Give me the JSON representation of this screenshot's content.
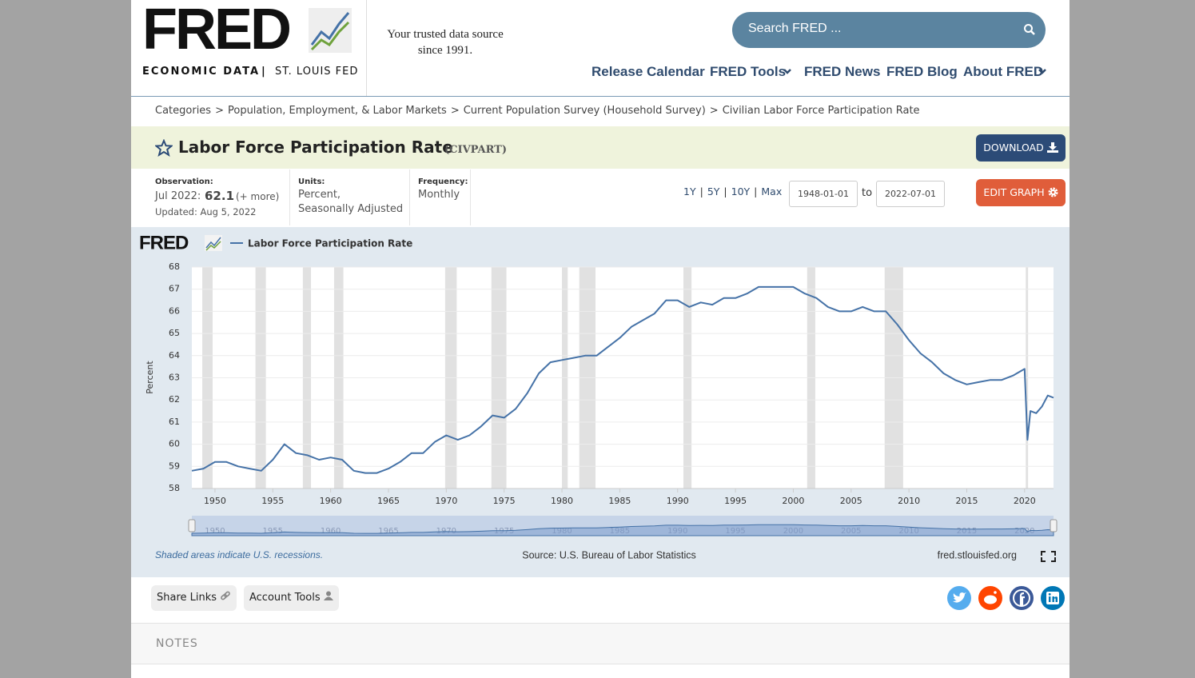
{
  "header": {
    "logo": "FRED",
    "logo_sub": "ECONOMIC DATA",
    "logo_divider": "|",
    "logo_org": "ST. LOUIS FED",
    "tagline_1": "Your trusted data source",
    "tagline_2": "since 1991.",
    "search_placeholder": "Search FRED ...",
    "nav": [
      "Release Calendar",
      "FRED Tools",
      "FRED News",
      "FRED Blog",
      "About FRED"
    ]
  },
  "breadcrumb": {
    "items": [
      "Categories",
      "Population, Employment, & Labor Markets",
      "Current Population Survey (Household Survey)",
      "Civilian Labor Force Participation Rate"
    ],
    "separator": ">"
  },
  "series_header": {
    "title": "Labor Force Participation Rate",
    "id": "(CIVPART)",
    "download": "DOWNLOAD"
  },
  "meta": {
    "observation_label": "Observation:",
    "observation_date": "Jul 2022:",
    "observation_value": "62.1",
    "observation_more": "(+ more)",
    "updated": "Updated: Aug 5, 2022",
    "units_label": "Units:",
    "units_1": "Percent,",
    "units_2": "Seasonally Adjusted",
    "frequency_label": "Frequency:",
    "frequency": "Monthly",
    "ranges": [
      "1Y",
      "5Y",
      "10Y",
      "Max"
    ],
    "range_separator": "|",
    "date_from": "1948-01-01",
    "date_to_word": "to",
    "date_to": "2022-07-01",
    "edit_graph": "EDIT GRAPH"
  },
  "chart_data": {
    "type": "line",
    "brand": "FRED",
    "y_label": "Percent",
    "grid": true,
    "x": [
      1948,
      1949,
      1950,
      1951,
      1952,
      1953,
      1954,
      1955,
      1956,
      1957,
      1958,
      1959,
      1960,
      1961,
      1962,
      1963,
      1964,
      1965,
      1966,
      1967,
      1968,
      1969,
      1970,
      1971,
      1972,
      1973,
      1974,
      1975,
      1976,
      1977,
      1978,
      1979,
      1980,
      1981,
      1982,
      1983,
      1984,
      1985,
      1986,
      1987,
      1988,
      1989,
      1990,
      1991,
      1992,
      1993,
      1994,
      1995,
      1996,
      1997,
      1998,
      1999,
      2000,
      2001,
      2002,
      2003,
      2004,
      2005,
      2006,
      2007,
      2008,
      2009,
      2010,
      2011,
      2012,
      2013,
      2014,
      2015,
      2016,
      2017,
      2018,
      2019,
      2020,
      2020.25,
      2020.5,
      2021,
      2021.5,
      2022,
      2022.5
    ],
    "series": [
      {
        "name": "Labor Force Participation Rate",
        "color": "#4572a7",
        "values": [
          58.8,
          58.9,
          59.2,
          59.2,
          59.0,
          58.9,
          58.8,
          59.3,
          60.0,
          59.6,
          59.5,
          59.3,
          59.4,
          59.3,
          58.8,
          58.7,
          58.7,
          58.9,
          59.2,
          59.6,
          59.6,
          60.1,
          60.4,
          60.2,
          60.4,
          60.8,
          61.3,
          61.2,
          61.6,
          62.3,
          63.2,
          63.7,
          63.8,
          63.9,
          64.0,
          64.0,
          64.4,
          64.8,
          65.3,
          65.6,
          65.9,
          66.5,
          66.5,
          66.2,
          66.4,
          66.3,
          66.6,
          66.6,
          66.8,
          67.1,
          67.1,
          67.1,
          67.1,
          66.8,
          66.6,
          66.2,
          66.0,
          66.0,
          66.2,
          66.0,
          66.0,
          65.4,
          64.7,
          64.1,
          63.7,
          63.2,
          62.9,
          62.7,
          62.8,
          62.9,
          62.9,
          63.1,
          63.4,
          60.2,
          61.5,
          61.4,
          61.7,
          62.2,
          62.1
        ]
      }
    ],
    "recessions": [
      [
        1948.9,
        1949.8
      ],
      [
        1953.5,
        1954.4
      ],
      [
        1957.6,
        1958.3
      ],
      [
        1960.3,
        1961.1
      ],
      [
        1969.9,
        1970.9
      ],
      [
        1973.9,
        1975.2
      ],
      [
        1980.0,
        1980.5
      ],
      [
        1981.5,
        1982.9
      ],
      [
        1990.5,
        1991.2
      ],
      [
        2001.2,
        2001.9
      ],
      [
        2007.9,
        2009.5
      ],
      [
        2020.1,
        2020.3
      ]
    ],
    "recession_color": "#e1e1e1",
    "xlim": [
      1948,
      2022.5
    ],
    "ylim": [
      58,
      68
    ],
    "xticks": [
      1950,
      1955,
      1960,
      1965,
      1970,
      1975,
      1980,
      1985,
      1990,
      1995,
      2000,
      2005,
      2010,
      2015,
      2020
    ],
    "yticks": [
      58,
      59,
      60,
      61,
      62,
      63,
      64,
      65,
      66,
      67,
      68
    ]
  },
  "chart_footer": {
    "note": "Shaded areas indicate U.S. recessions.",
    "source": "Source: U.S. Bureau of Labor Statistics",
    "site": "fred.stlouisfed.org"
  },
  "share": {
    "share_links": "Share Links",
    "account_tools": "Account Tools"
  },
  "notes": "NOTES"
}
